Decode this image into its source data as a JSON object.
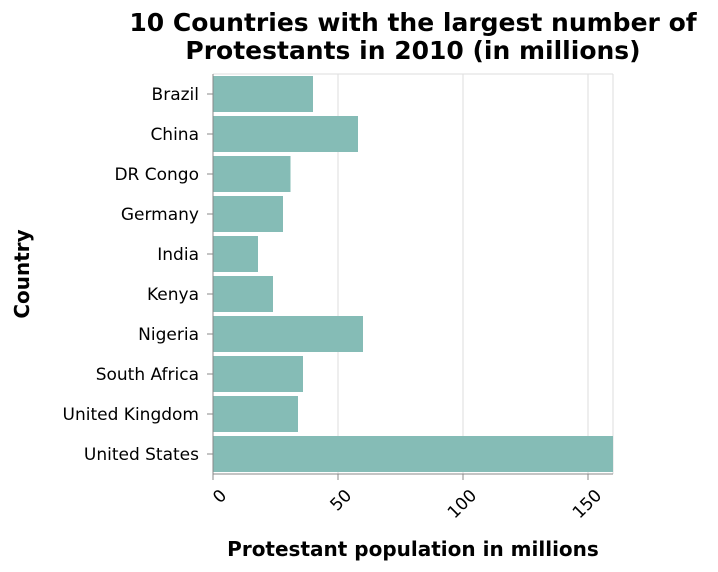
{
  "chart_data": {
    "type": "bar",
    "orientation": "horizontal",
    "title": "10 Countries with the largest number of Protestants in 2010 (in millions)",
    "title_lines": [
      "10 Countries with the largest number of",
      "Protestants in 2010 (in millions)"
    ],
    "xlabel": "Protestant population in millions",
    "ylabel": "Country",
    "categories": [
      "Brazil",
      "China",
      "DR Congo",
      "Germany",
      "India",
      "Kenya",
      "Nigeria",
      "South Africa",
      "United Kingdom",
      "United States"
    ],
    "values": [
      40,
      58,
      31,
      28,
      18,
      24,
      60,
      36,
      34,
      160
    ],
    "xlim": [
      0,
      160
    ],
    "xticks": [
      0,
      50,
      100,
      150
    ],
    "xtick_labels": [
      "0",
      "50",
      "100",
      "150"
    ],
    "grid": true,
    "bar_color": "#85bcb6",
    "grid_color": "#dddddd",
    "axis_color": "#888888"
  }
}
